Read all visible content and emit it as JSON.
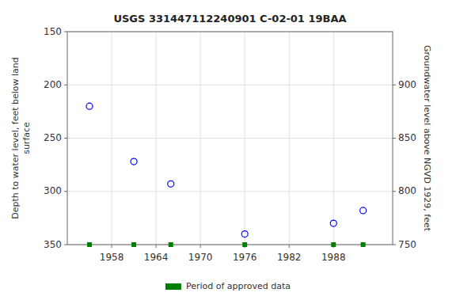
{
  "chart_data": {
    "type": "scatter",
    "title": "USGS 331447112240901 C-02-01 19BAA",
    "ylabel": "Depth to water level, feet below land\nsurface",
    "y2label": "Groundwater level above NGVD 1929, feet",
    "x": [
      1955,
      1961,
      1966,
      1976,
      1988,
      1992
    ],
    "series": [
      {
        "color": "#0000ff",
        "marker": "circle",
        "values": [
          220,
          272,
          293,
          340,
          330,
          318
        ]
      },
      {
        "name": "Period of approved data",
        "color": "#008000",
        "marker": "square",
        "values": [
          350,
          350,
          350,
          350,
          350,
          350
        ]
      }
    ],
    "xlim": [
      1952,
      1996
    ],
    "xticks": [
      1958,
      1964,
      1970,
      1976,
      1982,
      1988
    ],
    "ylim": [
      350,
      150
    ],
    "yticks": [
      150,
      200,
      250,
      300,
      350
    ],
    "y2lim": [
      750,
      950
    ],
    "y2ticks": [
      900,
      850,
      800,
      750
    ],
    "grid": true,
    "legend": "bottom"
  }
}
